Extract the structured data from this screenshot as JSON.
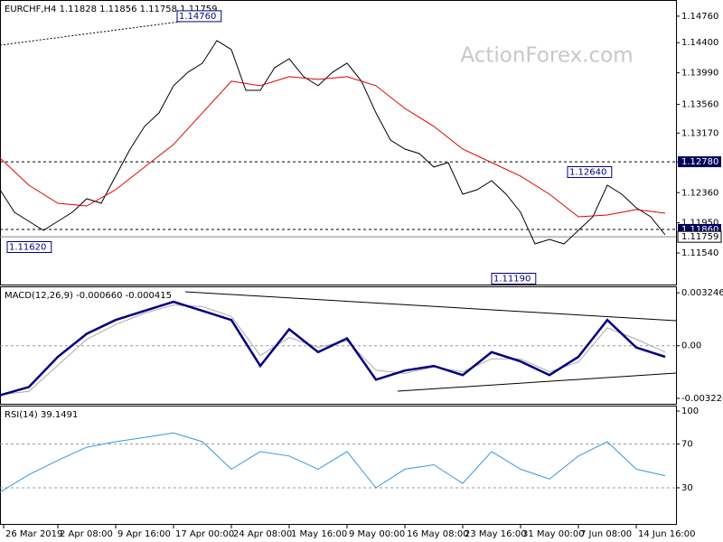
{
  "chart_data": [
    {
      "type": "line",
      "title": "EURCHF,H4 1.11828 1.11856 1.11758 1.11759",
      "watermark": "ActionForex.com",
      "xlim": [
        0,
        187
      ],
      "ylim": [
        1.1111,
        1.1498
      ],
      "yticks": [
        {
          "value": 1.1476,
          "label": "1.14760"
        },
        {
          "value": 1.144,
          "label": "1.14400"
        },
        {
          "value": 1.1399,
          "label": "1.13990"
        },
        {
          "value": 1.1356,
          "label": "1.13560"
        },
        {
          "value": 1.1317,
          "label": "1.13170"
        },
        {
          "value": 1.1278,
          "label": "1.12780"
        },
        {
          "value": 1.1236,
          "label": "1.12360"
        },
        {
          "value": 1.1195,
          "label": "1.11950"
        },
        {
          "value": 1.1154,
          "label": "1.11540"
        }
      ],
      "levels": [
        {
          "value": 1.1278,
          "label": "1.12780"
        },
        {
          "value": 1.1186,
          "label": "1.11860"
        }
      ],
      "last_price": {
        "value": 1.11759,
        "label": "1.11759"
      },
      "annotations": [
        {
          "x": 49,
          "value": 1.1476,
          "label": "1.14760"
        },
        {
          "x": 157,
          "value": 1.1264,
          "label": "1.12640"
        },
        {
          "x": 136,
          "value": 1.1119,
          "label": "1.11190"
        },
        {
          "x": 2,
          "value": 1.1162,
          "label": "1.11620"
        }
      ],
      "series": [
        {
          "color": "#000000",
          "x": [
            0,
            4,
            8,
            12,
            16,
            20,
            24,
            28,
            32,
            36,
            40,
            44,
            48,
            52,
            56,
            60,
            64,
            68,
            72,
            76,
            80,
            84,
            88,
            92,
            96,
            100,
            104,
            108,
            112,
            116,
            120,
            124,
            128,
            132,
            136,
            140,
            144,
            148,
            152,
            156,
            160,
            164,
            168,
            172,
            176,
            180,
            184
          ],
          "values": [
            1.124,
            1.12093,
            1.1197,
            1.11847,
            1.1197,
            1.12093,
            1.12277,
            1.12216,
            1.12585,
            1.12953,
            1.13261,
            1.13445,
            1.13814,
            1.13998,
            1.14121,
            1.14428,
            1.14305,
            1.13752,
            1.13752,
            1.1406,
            1.14182,
            1.13937,
            1.13814,
            1.13998,
            1.14121,
            1.13875,
            1.13445,
            1.13076,
            1.12953,
            1.12892,
            1.12708,
            1.12769,
            1.12339,
            1.124,
            1.12523,
            1.12339,
            1.12093,
            1.11663,
            1.11724,
            1.11663,
            1.11847,
            1.12032,
            1.12462,
            1.12339,
            1.12154,
            1.12032,
            1.11786
          ]
        },
        {
          "color": "#e00000",
          "x": [
            0,
            8,
            16,
            24,
            32,
            40,
            48,
            56,
            64,
            72,
            80,
            88,
            96,
            104,
            112,
            120,
            128,
            136,
            144,
            152,
            160,
            168,
            176,
            184
          ],
          "values": [
            1.1283,
            1.12462,
            1.12216,
            1.12179,
            1.124,
            1.12708,
            1.13015,
            1.13445,
            1.13875,
            1.13814,
            1.13937,
            1.139,
            1.13937,
            1.13814,
            1.13506,
            1.13261,
            1.12953,
            1.12769,
            1.12585,
            1.12339,
            1.12032,
            1.12056,
            1.1213,
            1.12081
          ]
        }
      ]
    },
    {
      "type": "line",
      "title": "MACD(12,26,9) -0.000660 -0.000415",
      "xlim": [
        0,
        187
      ],
      "ylim": [
        -0.00356,
        0.00364
      ],
      "yticks": [
        0.003246,
        {
          "value": 0,
          "label": "0.00"
        },
        -0.003226
      ],
      "levels": [
        0
      ],
      "series": [
        {
          "color": "#aaaaaa",
          "x": [
            0,
            8,
            16,
            24,
            32,
            40,
            48,
            56,
            64,
            72,
            80,
            88,
            96,
            104,
            112,
            120,
            128,
            136,
            144,
            152,
            160,
            168,
            176,
            184
          ],
          "values": [
            -0.003,
            -0.0028,
            -0.0012,
            0.0004,
            0.0013,
            0.002,
            0.0025,
            0.0024,
            0.0018,
            -0.0006,
            0.0005,
            -0.0001,
            0.0003,
            -0.0015,
            -0.0017,
            -0.0013,
            -0.0016,
            -0.0008,
            -0.0008,
            -0.0016,
            -0.001,
            0.0011,
            0.0004,
            -0.0004
          ]
        },
        {
          "color": "#00007f",
          "x": [
            0,
            8,
            16,
            24,
            32,
            40,
            48,
            56,
            64,
            72,
            80,
            88,
            96,
            104,
            112,
            120,
            128,
            136,
            144,
            152,
            160,
            168,
            176,
            184
          ],
          "values": [
            -0.00304,
            -0.00253,
            -0.00068,
            0.00073,
            0.00158,
            0.00214,
            0.0027,
            0.00214,
            0.00158,
            -0.00124,
            0.00101,
            -0.00039,
            0.00045,
            -0.00208,
            -0.00152,
            -0.00124,
            -0.0018,
            -0.00039,
            -0.00096,
            -0.0018,
            -0.00068,
            0.00158,
            -0.00011,
            -0.00068
          ]
        }
      ]
    },
    {
      "type": "line",
      "title": "RSI(14) 39.1491",
      "xlim": [
        0,
        187
      ],
      "ylim": [
        -3,
        105
      ],
      "yticks": [
        100,
        70,
        30
      ],
      "levels": [
        70,
        30
      ],
      "xticks": [
        {
          "value": 1,
          "label": "26 Mar 2019"
        },
        {
          "value": 16,
          "label": "2 Apr 08:00"
        },
        {
          "value": 32,
          "label": "9 Apr 16:00"
        },
        {
          "value": 48,
          "label": "17 Apr 00:00"
        },
        {
          "value": 64,
          "label": "24 Apr 08:00"
        },
        {
          "value": 80,
          "label": "1 May 16:00"
        },
        {
          "value": 96,
          "label": "9 May 00:00"
        },
        {
          "value": 112,
          "label": "16 May 08:00"
        },
        {
          "value": 128,
          "label": "23 May 16:00"
        },
        {
          "value": 144,
          "label": "31 May 00:00"
        },
        {
          "value": 160,
          "label": "7 Jun 08:00"
        },
        {
          "value": 176,
          "label": "14 Jun 16:00"
        }
      ],
      "series": [
        {
          "color": "#3399dd",
          "x": [
            0,
            8,
            16,
            24,
            32,
            40,
            48,
            56,
            64,
            72,
            80,
            88,
            96,
            104,
            112,
            120,
            128,
            136,
            144,
            152,
            160,
            168,
            176,
            184
          ],
          "values": [
            26,
            42,
            55,
            67,
            72,
            76,
            80,
            72,
            47,
            63,
            59,
            47,
            63,
            30,
            47,
            51,
            34,
            63,
            47,
            38,
            59,
            72,
            47,
            41
          ]
        }
      ]
    }
  ]
}
